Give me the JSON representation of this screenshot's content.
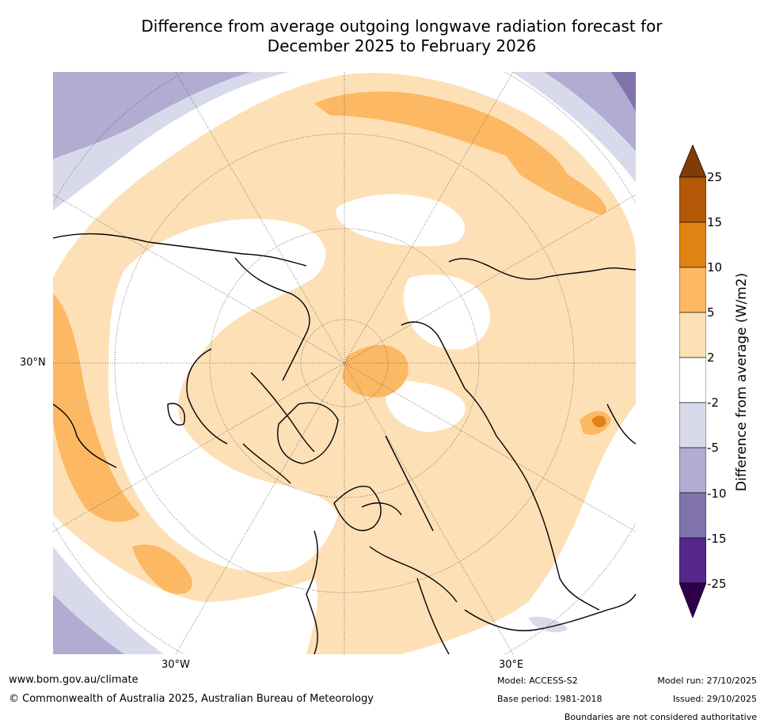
{
  "title": {
    "line1": "Difference from average outgoing longwave radiation forecast for",
    "line2": "December 2025 to February 2026"
  },
  "map": {
    "projection": "north-polar",
    "lat_label": "30°N",
    "lon_labels": [
      "30°W",
      "30°E"
    ]
  },
  "legend": {
    "label": "Difference from average (W/m2)",
    "ticks": [
      "25",
      "15",
      "10",
      "5",
      "2",
      "-2",
      "-5",
      "-10",
      "-15",
      "-25"
    ],
    "colors": {
      "over": "#7f3b08",
      "c15_25": "#b35806",
      "c10_15": "#e08214",
      "c5_10": "#fdb863",
      "c2_5": "#fee0b6",
      "c_2_2": "#ffffff",
      "c_5_2": "#d8daeb",
      "c_10_5": "#b2abd2",
      "c_15_10": "#8073ac",
      "c_25_15": "#542788",
      "under": "#2d004b"
    }
  },
  "footer": {
    "url": "www.bom.gov.au/climate",
    "copyright": "© Commonwealth of Australia 2025, Australian Bureau of Meteorology",
    "model": "Model: ACCESS-S2",
    "base_period": "Base period: 1981-2018",
    "model_run": "Model run: 27/10/2025",
    "issued": "Issued: 29/10/2025",
    "disclaimer": "Boundaries are not considered authoritative"
  }
}
